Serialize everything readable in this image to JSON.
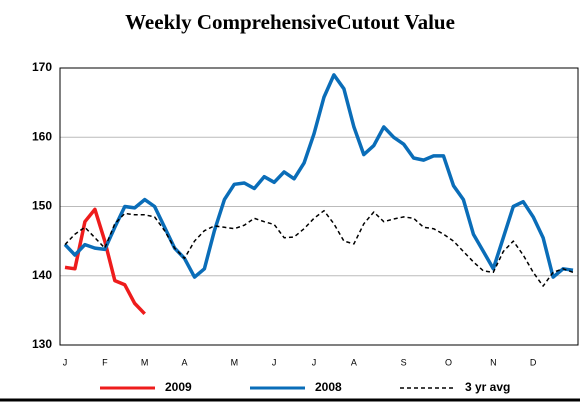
{
  "chart_data": {
    "type": "line",
    "title": "Weekly ComprehensiveCutout Value",
    "x": [
      1,
      2,
      3,
      4,
      5,
      6,
      7,
      8,
      9,
      10,
      11,
      12,
      13,
      14,
      15,
      16,
      17,
      18,
      19,
      20,
      21,
      22,
      23,
      24,
      25,
      26,
      27,
      28,
      29,
      30,
      31,
      32,
      33,
      34,
      35,
      36,
      37,
      38,
      39,
      40,
      41,
      42,
      43,
      44,
      45,
      46,
      47,
      48,
      49,
      50,
      51,
      52
    ],
    "xlim": [
      0.5,
      52.5
    ],
    "xticks": [
      {
        "value": 1,
        "label": "J"
      },
      {
        "value": 5,
        "label": "F"
      },
      {
        "value": 9,
        "label": "M"
      },
      {
        "value": 13,
        "label": "A"
      },
      {
        "value": 18,
        "label": "M"
      },
      {
        "value": 22,
        "label": "J"
      },
      {
        "value": 26,
        "label": "J"
      },
      {
        "value": 30,
        "label": "A"
      },
      {
        "value": 35,
        "label": "S"
      },
      {
        "value": 39.5,
        "label": "O"
      },
      {
        "value": 44,
        "label": "N"
      },
      {
        "value": 48,
        "label": "D"
      }
    ],
    "ylim": [
      130,
      170
    ],
    "yticks": [
      130,
      140,
      150,
      160,
      170
    ],
    "grid": true,
    "series": [
      {
        "name": "2009",
        "color": "#ee1c1c",
        "linestyle": "solid",
        "values": [
          141.2,
          141,
          147.8,
          149.6,
          145,
          139.3,
          138.7,
          136,
          134.5,
          null,
          null,
          null,
          null,
          null,
          null,
          null,
          null,
          null,
          null,
          null,
          null,
          null,
          null,
          null,
          null,
          null,
          null,
          null,
          null,
          null,
          null,
          null,
          null,
          null,
          null,
          null,
          null,
          null,
          null,
          null,
          null,
          null,
          null,
          null,
          null,
          null,
          null,
          null,
          null,
          null,
          null,
          null
        ]
      },
      {
        "name": "2008",
        "color": "#0a6db8",
        "linestyle": "solid",
        "values": [
          144.5,
          143,
          144.5,
          144,
          143.8,
          147,
          150,
          149.8,
          151,
          150,
          147,
          144,
          142.5,
          139.8,
          141,
          146.5,
          151,
          153.2,
          153.4,
          152.6,
          154.3,
          153.5,
          155,
          154,
          156.3,
          160.5,
          165.8,
          169,
          167,
          161.5,
          157.5,
          158.8,
          161.5,
          160,
          159,
          157,
          156.7,
          157.3,
          157.3,
          153,
          151,
          146,
          143.5,
          141,
          145.5,
          150,
          150.7,
          148.5,
          145.5,
          139.8,
          141,
          140.8
        ]
      },
      {
        "name": "3 yr avg",
        "color": "#000000",
        "linestyle": "dashed",
        "values": [
          144.5,
          146,
          147,
          145.5,
          144,
          147.5,
          149,
          148.8,
          148.8,
          148.5,
          146.5,
          144,
          142.5,
          145,
          146.5,
          147.2,
          147,
          146.8,
          147.3,
          148.3,
          147.8,
          147.4,
          145.5,
          145.6,
          146.8,
          148.3,
          149.4,
          147.5,
          145,
          144.6,
          147.5,
          149.2,
          147.8,
          148.2,
          148.5,
          148.3,
          147,
          146.8,
          146,
          145,
          143.5,
          142,
          140.7,
          140.5,
          143.5,
          145,
          143,
          140.5,
          138.5,
          140.5,
          141,
          140.5
        ]
      }
    ]
  }
}
